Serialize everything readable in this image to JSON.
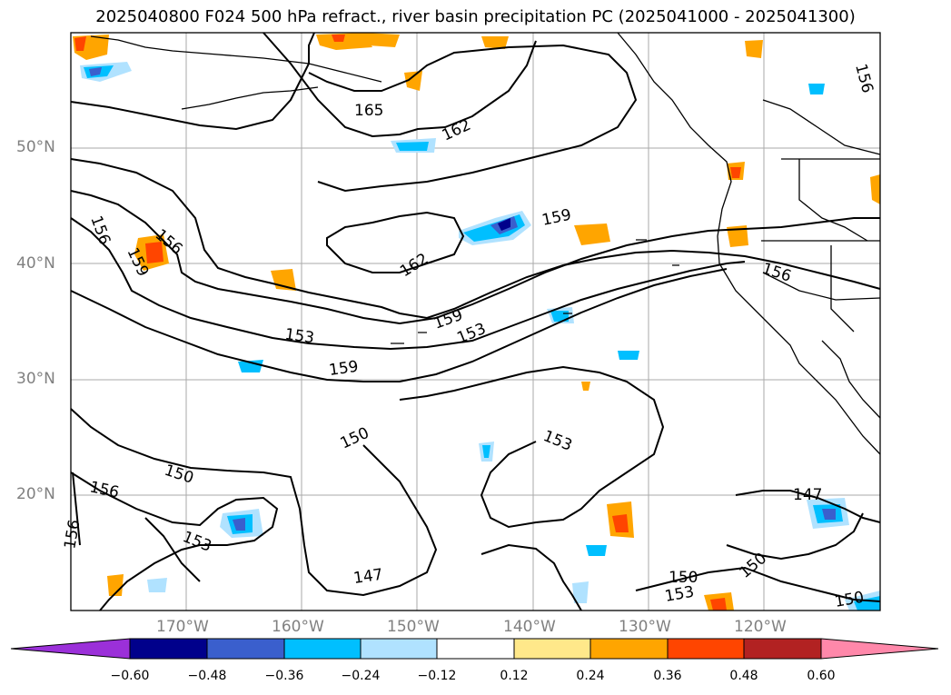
{
  "title": "2025040800 F024 500 hPa refract., river basin precipitation PC (2025041000 - 2025041300)",
  "map": {
    "lat_labels": [
      "50°N",
      "40°N",
      "30°N",
      "20°N"
    ],
    "lon_labels": [
      "170°W",
      "160°W",
      "150°W",
      "140°W",
      "130°W",
      "120°W"
    ],
    "contour_labels": [
      "165",
      "162",
      "162",
      "159",
      "159",
      "159",
      "159",
      "156",
      "156",
      "156",
      "156",
      "156",
      "156",
      "153",
      "153",
      "153",
      "153",
      "153",
      "150",
      "150",
      "150",
      "150",
      "150",
      "147",
      "147"
    ],
    "land_color": "#ffffff",
    "grid_color": "#aaaaaa"
  },
  "colorbar": {
    "ticks": [
      "−0.60",
      "−0.48",
      "−0.36",
      "−0.24",
      "−0.12",
      "0.12",
      "0.24",
      "0.36",
      "0.48",
      "0.60"
    ],
    "colors": [
      "#9b30d9",
      "#00008b",
      "#3a5fcd",
      "#00bfff",
      "#b0e2ff",
      "#ffffff",
      "#ffe88a",
      "#ffa500",
      "#ff4500",
      "#b22222",
      "#ff88aa"
    ]
  }
}
